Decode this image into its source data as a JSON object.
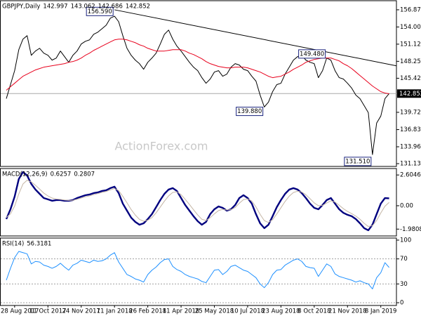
{
  "chart_data": [
    {
      "type": "line",
      "title": "GBPJPY,Daily",
      "header_values": [
        142.997,
        143.062,
        142.686,
        142.852
      ],
      "watermark": "ActionForex.com",
      "ylim": [
        130.67,
        158.39
      ],
      "yticks": [
        {
          "value": 156.87,
          "label": "156.870"
        },
        {
          "value": 154,
          "label": "154.000"
        },
        {
          "value": 151.12,
          "label": "151.120"
        },
        {
          "value": 148.25,
          "label": "148.250"
        },
        {
          "value": 145.42,
          "label": "145.420"
        },
        {
          "value": 139.72,
          "label": "139.720"
        },
        {
          "value": 136.83,
          "label": "136.830"
        },
        {
          "value": 133.96,
          "label": "133.960"
        },
        131.135
      ],
      "last_price": 142.852,
      "series": [
        {
          "color": "#000000",
          "values": [
            142.01,
            144.35,
            146.69,
            150.2,
            151.96,
            152.54,
            149.26,
            149.97,
            150.43,
            149.62,
            149.26,
            148.45,
            148.8,
            149.97,
            149.03,
            148.09,
            149.26,
            149.97,
            151.14,
            151.6,
            151.84,
            152.77,
            153.13,
            153.71,
            154.3,
            155.47,
            155.8,
            154.88,
            152.54,
            150.43,
            149.26,
            148.45,
            147.86,
            146.92,
            148.09,
            148.8,
            149.62,
            151.14,
            152.77,
            153.48,
            151.96,
            150.79,
            149.97,
            149.03,
            148.09,
            147.27,
            146.69,
            145.52,
            144.58,
            145.29,
            146.46,
            146.69,
            145.75,
            146.11,
            147.27,
            147.86,
            147.63,
            146.92,
            146.69,
            145.75,
            144.94,
            142.6,
            140.61,
            141.42,
            143.18,
            144.35,
            144.58,
            146.11,
            147.27,
            148.45,
            149.03,
            149.26,
            148.45,
            148.09,
            147.86,
            145.52,
            146.69,
            148.8,
            148.45,
            146.69,
            145.52,
            145.29,
            144.58,
            143.77,
            142.6,
            142.01,
            140.84,
            139.67,
            132.65,
            137.92,
            139.09,
            142.01,
            142.852
          ]
        },
        {
          "color": "#e8001c",
          "values": [
            143.41,
            144.0,
            144.58,
            145.17,
            145.75,
            146.11,
            146.46,
            146.81,
            147.04,
            147.27,
            147.39,
            147.51,
            147.63,
            147.74,
            147.86,
            148.09,
            148.21,
            148.45,
            148.8,
            149.26,
            149.62,
            150.08,
            150.43,
            150.79,
            151.14,
            151.49,
            151.84,
            151.96,
            151.96,
            151.84,
            151.6,
            151.37,
            151.02,
            150.79,
            150.43,
            150.2,
            149.97,
            149.97,
            149.97,
            150.08,
            150.2,
            150.2,
            150.2,
            149.97,
            149.62,
            149.38,
            149.03,
            148.68,
            148.21,
            147.86,
            147.63,
            147.39,
            147.27,
            147.16,
            147.16,
            147.27,
            147.27,
            147.27,
            147.16,
            146.92,
            146.69,
            146.46,
            146.11,
            145.75,
            145.52,
            145.64,
            145.75,
            146.11,
            146.46,
            146.92,
            147.27,
            147.63,
            148.09,
            148.33,
            148.56,
            148.68,
            148.8,
            148.8,
            148.8,
            148.56,
            148.33,
            147.86,
            147.51,
            147.04,
            146.46,
            145.87,
            145.29,
            144.7,
            144.12,
            143.65,
            143.18,
            142.95,
            142.83
          ]
        }
      ],
      "annotations": [
        {
          "at": 26,
          "value": 156.59,
          "label": "156.590"
        },
        {
          "at": 77,
          "value": 149.48,
          "label": "149.480"
        },
        {
          "at": 62,
          "value": 139.88,
          "label": "139.880"
        },
        {
          "at": 88,
          "value": 131.51,
          "label": "131.510"
        }
      ],
      "trendline": {
        "from": {
          "at": 26,
          "value": 156.87
        },
        "to": {
          "at": 92,
          "value": 147.74
        }
      }
    },
    {
      "type": "line",
      "title": "MACD(12,26,9)",
      "header_values": [
        0.6257,
        0.2807
      ],
      "ylim": [
        -2.56,
        3.15
      ],
      "yticks": [
        2.6046,
        {
          "value": 0,
          "label": "0.00"
        },
        -1.9808
      ],
      "series": [
        {
          "color": "#00007f",
          "values": [
            -1.13,
            -0.3,
            0.77,
            2.26,
            2.86,
            2.56,
            1.85,
            1.37,
            1.01,
            0.65,
            0.54,
            0.42,
            0.48,
            0.48,
            0.42,
            0.42,
            0.48,
            0.65,
            0.77,
            0.89,
            0.95,
            1.07,
            1.13,
            1.25,
            1.31,
            1.49,
            1.61,
            1.07,
            0.18,
            -0.42,
            -1.01,
            -1.37,
            -1.61,
            -1.49,
            -1.13,
            -0.71,
            -0.12,
            0.48,
            1.01,
            1.37,
            1.49,
            1.25,
            0.65,
            0.06,
            -0.42,
            -0.89,
            -1.31,
            -1.61,
            -1.37,
            -0.71,
            -0.3,
            -0.06,
            -0.18,
            -0.42,
            -0.3,
            0.06,
            0.65,
            0.89,
            0.65,
            0.18,
            -0.71,
            -1.49,
            -1.9,
            -1.61,
            -0.89,
            -0.12,
            0.48,
            1.01,
            1.37,
            1.49,
            1.37,
            1.07,
            0.65,
            0.18,
            -0.18,
            -0.3,
            0.06,
            0.48,
            0.65,
            0.18,
            -0.3,
            -0.6,
            -0.77,
            -0.89,
            -1.13,
            -1.49,
            -1.9,
            -2.08,
            -1.61,
            -0.71,
            0.18,
            0.65,
            0.6257
          ]
        },
        {
          "color": "#c4b5a5",
          "values": [
            -1.0,
            -0.69,
            -0.03,
            1.0,
            1.84,
            2.16,
            2.02,
            1.73,
            1.41,
            1.07,
            0.83,
            0.65,
            0.57,
            0.53,
            0.48,
            0.45,
            0.46,
            0.55,
            0.65,
            0.76,
            0.84,
            0.94,
            1.03,
            1.13,
            1.21,
            1.34,
            1.46,
            1.28,
            0.79,
            0.25,
            -0.32,
            -0.79,
            -1.16,
            -1.31,
            -1.23,
            -1.0,
            -0.6,
            -0.11,
            0.39,
            0.83,
            1.13,
            1.18,
            0.94,
            0.54,
            0.11,
            -0.34,
            -0.78,
            -1.15,
            -1.25,
            -1.01,
            -0.69,
            -0.41,
            -0.31,
            -0.36,
            -0.33,
            -0.15,
            0.21,
            0.52,
            0.58,
            0.4,
            -0.1,
            -0.73,
            -1.26,
            -1.42,
            -1.18,
            -0.7,
            -0.17,
            0.36,
            0.81,
            1.12,
            1.23,
            1.16,
            0.93,
            0.59,
            0.24,
            0.0,
            0.03,
            0.23,
            0.42,
            0.31,
            0.04,
            -0.25,
            -0.48,
            -0.67,
            -0.88,
            -1.15,
            -1.49,
            -1.76,
            -1.69,
            -1.25,
            -0.61,
            -0.04,
            0.2807
          ]
        }
      ]
    },
    {
      "type": "line",
      "title": "RSI(14)",
      "header_values": [
        56.3181
      ],
      "ylim": [
        -4.4,
        103.3
      ],
      "yticks": [
        100,
        70,
        30,
        0
      ],
      "level_lines": true,
      "categories": [
        null,
        null,
        "28 Aug 2017",
        null,
        null,
        null,
        null,
        null,
        null,
        null,
        "11 Oct 2017",
        null,
        null,
        null,
        null,
        null,
        null,
        null,
        "24 Nov 2017",
        null,
        null,
        null,
        null,
        null,
        null,
        null,
        "11 Jan 2018",
        null,
        null,
        null,
        null,
        null,
        null,
        null,
        "26 Feb 2018",
        null,
        null,
        null,
        null,
        null,
        null,
        null,
        "11 Apr 2018",
        null,
        null,
        null,
        null,
        null,
        null,
        null,
        "25 May 2018",
        null,
        null,
        null,
        null,
        null,
        null,
        null,
        "10 Jul 2018",
        null,
        null,
        null,
        null,
        null,
        null,
        null,
        "23 Aug 2018",
        null,
        null,
        null,
        null,
        null,
        null,
        null,
        "8 Oct 2018",
        null,
        null,
        null,
        null,
        null,
        null,
        null,
        "21 Nov 2018",
        null,
        null,
        null,
        null,
        null,
        null,
        null,
        "8 Jan 2019",
        null,
        null
      ],
      "series": [
        {
          "color": "#1e90ff",
          "values": [
            36,
            55,
            72,
            82,
            80,
            78,
            62,
            66,
            65,
            60,
            58,
            55,
            58,
            63,
            57,
            52,
            60,
            63,
            68,
            66,
            64,
            68,
            66,
            67,
            70,
            76,
            80,
            65,
            55,
            45,
            42,
            38,
            36,
            33,
            45,
            52,
            57,
            64,
            69,
            70,
            58,
            53,
            50,
            45,
            42,
            40,
            38,
            34,
            32,
            42,
            52,
            53,
            45,
            50,
            58,
            60,
            56,
            52,
            50,
            45,
            40,
            30,
            24,
            32,
            45,
            52,
            53,
            60,
            64,
            68,
            70,
            66,
            58,
            56,
            55,
            42,
            52,
            62,
            58,
            46,
            42,
            40,
            38,
            36,
            33,
            35,
            32,
            30,
            22,
            40,
            48,
            64,
            56.3181
          ]
        }
      ]
    }
  ]
}
